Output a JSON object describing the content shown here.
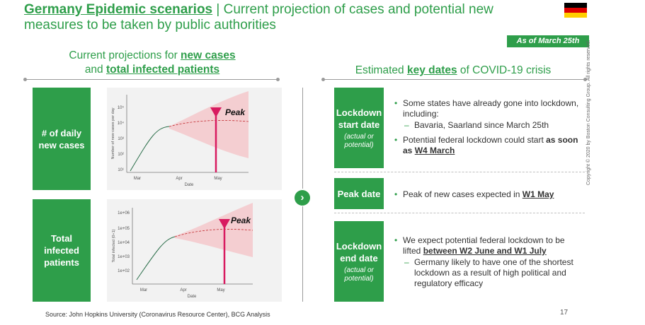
{
  "header": {
    "title_bold": "Germany Epidemic scenarios",
    "title_rest": " | Current projection of cases and potential new measures to be taken by public authorities",
    "as_of": "As of March 25th"
  },
  "colors": {
    "accent": "#2e9e4a",
    "peak": "#d81b60",
    "cone": "#f4c4c8"
  },
  "left": {
    "heading_pre1": "Current projections for ",
    "heading_u1": "new cases",
    "heading_pre2": "and ",
    "heading_u2": "total infected patients",
    "box1": "# of daily new cases",
    "box2": "Total infected patients",
    "source": "Source: John Hopkins University (Coronavirus Resource Center), BCG Analysis"
  },
  "right": {
    "heading_pre": "Estimated ",
    "heading_u": "key dates",
    "heading_post": " of COVID-19 crisis",
    "row1": {
      "label": "Lockdown start date",
      "sub": "(actual or potential)",
      "b1": "Some states have already gone into lockdown, including:",
      "b1_sub": "Bavaria, Saarland since March 25th",
      "b2_pre": "Potential federal lockdown could start ",
      "b2_bold": "as soon as ",
      "b2_u": "W4 March"
    },
    "row2": {
      "label": "Peak date",
      "b1_pre": "Peak of new cases expected in ",
      "b1_u": "W1 May"
    },
    "row3": {
      "label": "Lockdown end date",
      "sub": "(actual or potential)",
      "b1_pre": "We expect potential federal lockdown to be lifted ",
      "b1_u": "between W2 June and W1 July",
      "b1_sub": "Germany likely to have one of the shortest lockdown as a result of high political and regulatory efficacy"
    }
  },
  "chart_data": [
    {
      "type": "line",
      "title": "",
      "xlabel": "Date",
      "ylabel": "Number of new cases per day",
      "x_ticks": [
        "Mar",
        "Apr",
        "May"
      ],
      "y_ticks": [
        "10¹",
        "10²",
        "10³",
        "10⁴",
        "10⁵"
      ],
      "y_scale": "log",
      "annotation": "Peak",
      "peak_x": "May"
    },
    {
      "type": "line",
      "title": "",
      "xlabel": "Date",
      "ylabel": "Total infected (0+1)",
      "x_ticks": [
        "Mar",
        "Apr",
        "May"
      ],
      "y_ticks": [
        "1e+02",
        "1e+03",
        "1e+04",
        "1e+05",
        "1e+06"
      ],
      "y_scale": "log",
      "annotation": "Peak",
      "peak_x": "May"
    }
  ],
  "footer": {
    "page": "17",
    "copyright": "Copyright © 2020 by Boston Consulting Group. All rights reserved."
  }
}
